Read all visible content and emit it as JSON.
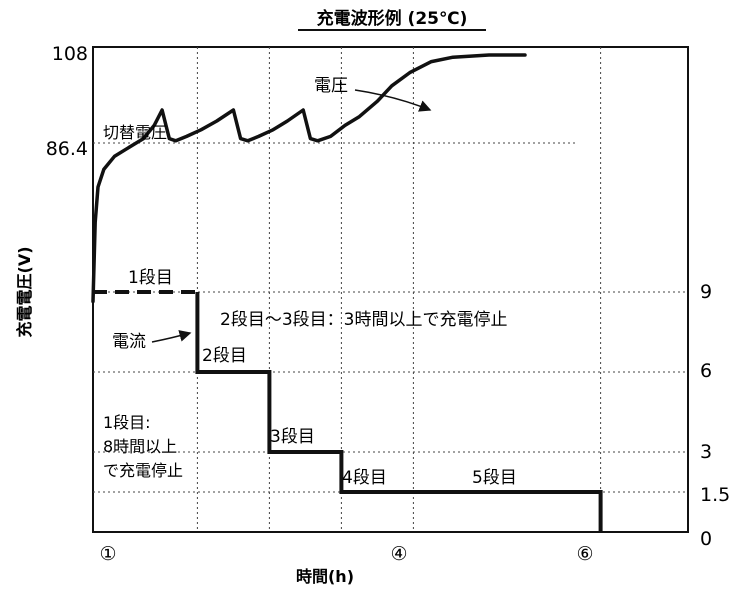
{
  "chart_data": {
    "type": "line",
    "title": "充電波形例 (25℃)",
    "xlabel": "時間(h)",
    "ylabel_left": "充電電圧(V)",
    "x_range": [
      1,
      7
    ],
    "x_ticks": [
      {
        "x": 1,
        "label": "①"
      },
      {
        "x": 4,
        "label": "④"
      },
      {
        "x": 6,
        "label": "⑥"
      }
    ],
    "left_axis": {
      "ticks": [
        "108",
        "86.4"
      ]
    },
    "right_axis": {
      "range": [
        0,
        9
      ],
      "ticks": [
        "9",
        "6",
        "3",
        "1.5",
        "0"
      ]
    },
    "grid": true,
    "reference_line": {
      "label": "切替電圧"
    },
    "series": [
      {
        "name": "電圧",
        "points": [
          [
            1.0,
            8.4
          ],
          [
            1.03,
            10.2
          ],
          [
            1.07,
            11.0
          ],
          [
            1.15,
            11.4
          ],
          [
            1.3,
            11.7
          ],
          [
            1.5,
            11.9
          ],
          [
            1.7,
            12.1
          ],
          [
            1.85,
            12.4
          ],
          [
            1.96,
            12.75
          ],
          [
            2.06,
            12.1
          ],
          [
            2.15,
            12.05
          ],
          [
            2.3,
            12.15
          ],
          [
            2.5,
            12.3
          ],
          [
            2.72,
            12.5
          ],
          [
            2.95,
            12.75
          ],
          [
            3.05,
            12.1
          ],
          [
            3.15,
            12.05
          ],
          [
            3.3,
            12.15
          ],
          [
            3.5,
            12.3
          ],
          [
            3.7,
            12.5
          ],
          [
            3.92,
            12.75
          ],
          [
            4.02,
            12.1
          ],
          [
            4.12,
            12.05
          ],
          [
            4.3,
            12.15
          ],
          [
            4.5,
            12.4
          ],
          [
            4.7,
            12.6
          ],
          [
            4.95,
            12.95
          ],
          [
            5.15,
            13.3
          ],
          [
            5.4,
            13.6
          ],
          [
            5.7,
            13.85
          ],
          [
            6.0,
            13.95
          ],
          [
            6.5,
            14.0
          ],
          [
            7.0,
            14.0
          ]
        ]
      },
      {
        "name": "電流",
        "points": [
          [
            1.0,
            9.0
          ],
          [
            1.0,
            9.0
          ],
          [
            2.45,
            9.0
          ],
          [
            2.45,
            6.0
          ],
          [
            3.45,
            6.0
          ],
          [
            3.45,
            3.0
          ],
          [
            4.45,
            3.0
          ],
          [
            4.45,
            1.5
          ],
          [
            8.05,
            1.5
          ],
          [
            8.05,
            0
          ]
        ]
      }
    ],
    "annotations": {
      "voltage_label": "電圧",
      "current_label": "電流",
      "stage1": "1段目",
      "stage2": "2段目",
      "stage3": "3段目",
      "stage4": "4段目",
      "stage5": "5段目",
      "note_stage23": "2段目～3段目：3時間以上で充電停止",
      "note_stage1": [
        "1段目:",
        "8時間以上",
        "で充電停止"
      ]
    }
  }
}
